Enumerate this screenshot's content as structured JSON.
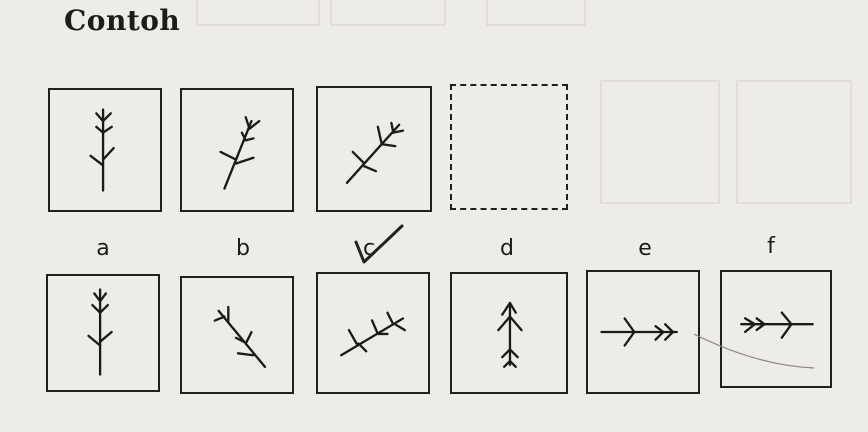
{
  "title": "Contoh",
  "question_boxes": [
    {
      "id": "q1",
      "figure": "branch-up"
    },
    {
      "id": "q2",
      "figure": "branch-tilt-1"
    },
    {
      "id": "q3",
      "figure": "branch-tilt-2"
    },
    {
      "id": "q4",
      "figure": "blank"
    }
  ],
  "options": [
    {
      "label": "a",
      "figure": "branch-up"
    },
    {
      "label": "b",
      "figure": "branch-down-right"
    },
    {
      "label": "c",
      "figure": "branch-tilt-3"
    },
    {
      "label": "d",
      "figure": "branch-up-split"
    },
    {
      "label": "e",
      "figure": "branch-left"
    },
    {
      "label": "f",
      "figure": "branch-right"
    }
  ],
  "selected_option": "c",
  "colors": {
    "paper": "#eeece6",
    "ink": "#1f1f1f"
  }
}
